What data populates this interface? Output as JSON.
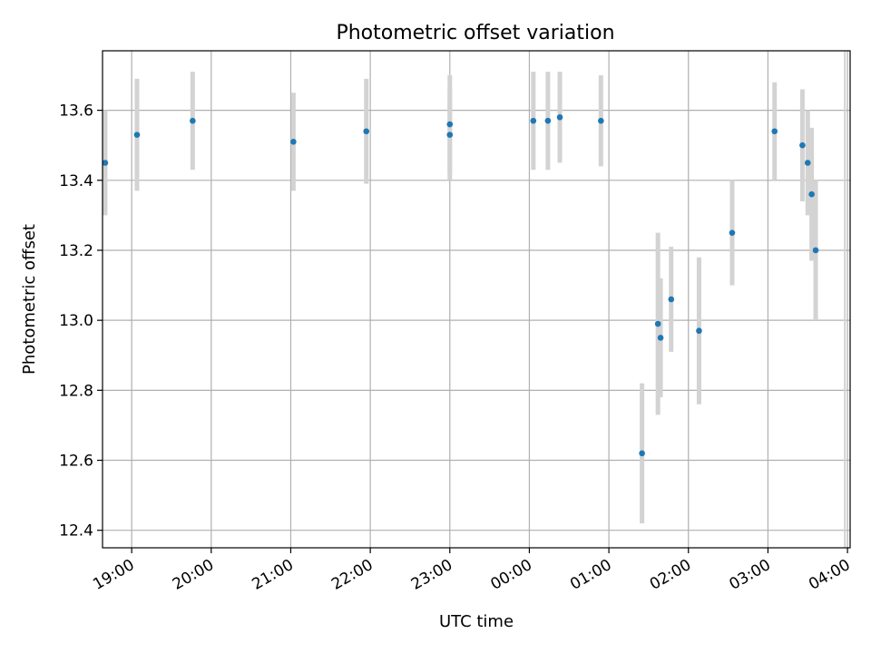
{
  "chart_data": {
    "type": "scatter",
    "title": "Photometric offset variation",
    "xlabel": "UTC time",
    "ylabel": "Photometric offset",
    "grid": true,
    "xlim": [
      "18:38",
      "04:02"
    ],
    "ylim": [
      12.35,
      13.77
    ],
    "x_ticks": [
      "19:00",
      "20:00",
      "21:00",
      "22:00",
      "23:00",
      "00:00",
      "01:00",
      "02:00",
      "03:00",
      "04:00"
    ],
    "y_ticks": [
      12.4,
      12.6,
      12.8,
      13.0,
      13.2,
      13.4,
      13.6
    ],
    "y_tick_labels": [
      "12.4",
      "12.6",
      "12.8",
      "13.0",
      "13.2",
      "13.4",
      "13.6"
    ],
    "marker_color": "#1f77b4",
    "errorbar_color": "#d3d3d3",
    "x_extra_bars": [
      "03:58"
    ],
    "points": [
      {
        "x": "18:40",
        "y": 13.45,
        "err": 0.15
      },
      {
        "x": "19:04",
        "y": 13.53,
        "err": 0.16
      },
      {
        "x": "19:46",
        "y": 13.57,
        "err": 0.14
      },
      {
        "x": "21:02",
        "y": 13.51,
        "err": 0.14
      },
      {
        "x": "21:57",
        "y": 13.54,
        "err": 0.15
      },
      {
        "x": "23:00",
        "y": 13.56,
        "err": 0.14
      },
      {
        "x": "23:00",
        "y": 13.53,
        "err": 0.13
      },
      {
        "x": "00:03",
        "y": 13.57,
        "err": 0.14
      },
      {
        "x": "00:14",
        "y": 13.57,
        "err": 0.14
      },
      {
        "x": "00:23",
        "y": 13.58,
        "err": 0.13
      },
      {
        "x": "00:54",
        "y": 13.57,
        "err": 0.13
      },
      {
        "x": "01:25",
        "y": 12.62,
        "err": 0.2
      },
      {
        "x": "01:37",
        "y": 12.99,
        "err": 0.26
      },
      {
        "x": "01:39",
        "y": 12.95,
        "err": 0.17
      },
      {
        "x": "01:47",
        "y": 13.06,
        "err": 0.15
      },
      {
        "x": "02:08",
        "y": 12.97,
        "err": 0.21
      },
      {
        "x": "02:33",
        "y": 13.25,
        "err": 0.15
      },
      {
        "x": "03:05",
        "y": 13.54,
        "err": 0.14
      },
      {
        "x": "03:26",
        "y": 13.5,
        "err": 0.16
      },
      {
        "x": "03:30",
        "y": 13.45,
        "err": 0.15
      },
      {
        "x": "03:33",
        "y": 13.36,
        "err": 0.19
      },
      {
        "x": "03:36",
        "y": 13.2,
        "err": 0.2
      }
    ]
  }
}
